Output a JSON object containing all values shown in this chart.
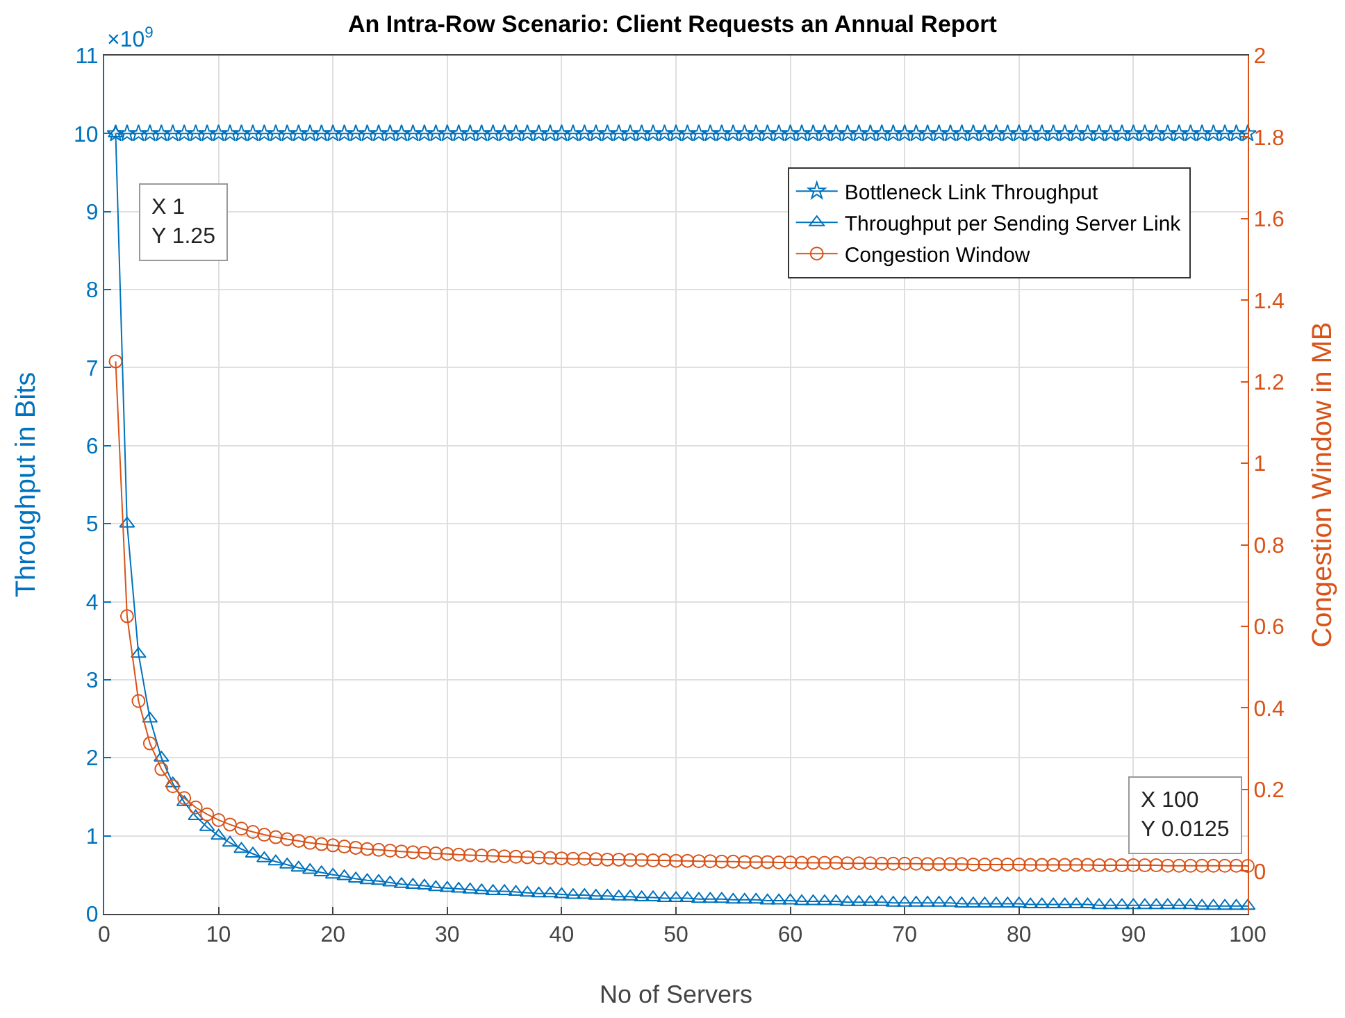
{
  "chart_data": {
    "type": "line",
    "title": "An Intra-Row Scenario: Client Requests an Annual Report",
    "xlabel": "No of Servers",
    "ylabel": "Throughput in Bits",
    "y2label": "Congestion Window in MB",
    "x": [
      1,
      2,
      3,
      4,
      5,
      6,
      7,
      8,
      9,
      10,
      11,
      12,
      13,
      14,
      15,
      16,
      17,
      18,
      19,
      20,
      21,
      22,
      23,
      24,
      25,
      26,
      27,
      28,
      29,
      30,
      31,
      32,
      33,
      34,
      35,
      36,
      37,
      38,
      39,
      40,
      41,
      42,
      43,
      44,
      45,
      46,
      47,
      48,
      49,
      50,
      51,
      52,
      53,
      54,
      55,
      56,
      57,
      58,
      59,
      60,
      61,
      62,
      63,
      64,
      65,
      66,
      67,
      68,
      69,
      70,
      71,
      72,
      73,
      74,
      75,
      76,
      77,
      78,
      79,
      80,
      81,
      82,
      83,
      84,
      85,
      86,
      87,
      88,
      89,
      90,
      91,
      92,
      93,
      94,
      95,
      96,
      97,
      98,
      99,
      100
    ],
    "series": [
      {
        "name": "Bottleneck Link Throughput",
        "color": "#0072bd",
        "marker": "star",
        "values": [
          10,
          10,
          10,
          10,
          10,
          10,
          10,
          10,
          10,
          10,
          10,
          10,
          10,
          10,
          10,
          10,
          10,
          10,
          10,
          10,
          10,
          10,
          10,
          10,
          10,
          10,
          10,
          10,
          10,
          10,
          10,
          10,
          10,
          10,
          10,
          10,
          10,
          10,
          10,
          10,
          10,
          10,
          10,
          10,
          10,
          10,
          10,
          10,
          10,
          10,
          10,
          10,
          10,
          10,
          10,
          10,
          10,
          10,
          10,
          10,
          10,
          10,
          10,
          10,
          10,
          10,
          10,
          10,
          10,
          10,
          10,
          10,
          10,
          10,
          10,
          10,
          10,
          10,
          10,
          10,
          10,
          10,
          10,
          10,
          10,
          10,
          10,
          10,
          10,
          10,
          10,
          10,
          10,
          10,
          10,
          10,
          10,
          10,
          10,
          10
        ]
      },
      {
        "name": "Throughput per Sending Server Link",
        "color": "#0072bd",
        "marker": "triangle",
        "values": [
          10,
          5,
          3.33,
          2.5,
          2,
          1.67,
          1.43,
          1.25,
          1.11,
          1,
          0.91,
          0.83,
          0.77,
          0.71,
          0.67,
          0.63,
          0.59,
          0.56,
          0.53,
          0.5,
          0.48,
          0.45,
          0.43,
          0.42,
          0.4,
          0.38,
          0.37,
          0.36,
          0.34,
          0.33,
          0.32,
          0.31,
          0.3,
          0.29,
          0.29,
          0.28,
          0.27,
          0.26,
          0.26,
          0.25,
          0.24,
          0.24,
          0.23,
          0.23,
          0.22,
          0.22,
          0.21,
          0.21,
          0.2,
          0.2,
          0.2,
          0.19,
          0.19,
          0.19,
          0.18,
          0.18,
          0.18,
          0.17,
          0.17,
          0.17,
          0.16,
          0.16,
          0.16,
          0.16,
          0.15,
          0.15,
          0.15,
          0.15,
          0.14,
          0.14,
          0.14,
          0.14,
          0.14,
          0.14,
          0.13,
          0.13,
          0.13,
          0.13,
          0.13,
          0.13,
          0.12,
          0.12,
          0.12,
          0.12,
          0.12,
          0.12,
          0.11,
          0.11,
          0.11,
          0.11,
          0.11,
          0.11,
          0.11,
          0.11,
          0.11,
          0.1,
          0.1,
          0.1,
          0.1,
          0.1
        ]
      },
      {
        "name": "Congestion Window",
        "color": "#d95319",
        "marker": "circle",
        "axis": "y2",
        "values": [
          1.25,
          0.625,
          0.417,
          0.313,
          0.25,
          0.208,
          0.179,
          0.156,
          0.139,
          0.125,
          0.114,
          0.104,
          0.096,
          0.089,
          0.083,
          0.078,
          0.074,
          0.069,
          0.066,
          0.063,
          0.06,
          0.057,
          0.054,
          0.052,
          0.05,
          0.048,
          0.046,
          0.045,
          0.043,
          0.042,
          0.04,
          0.039,
          0.038,
          0.037,
          0.036,
          0.035,
          0.034,
          0.033,
          0.032,
          0.031,
          0.03,
          0.03,
          0.029,
          0.028,
          0.028,
          0.027,
          0.027,
          0.026,
          0.026,
          0.025,
          0.025,
          0.024,
          0.024,
          0.023,
          0.023,
          0.022,
          0.022,
          0.022,
          0.021,
          0.021,
          0.02,
          0.02,
          0.02,
          0.02,
          0.019,
          0.019,
          0.019,
          0.018,
          0.018,
          0.018,
          0.018,
          0.017,
          0.017,
          0.017,
          0.017,
          0.016,
          0.016,
          0.016,
          0.016,
          0.016,
          0.015,
          0.015,
          0.015,
          0.015,
          0.015,
          0.015,
          0.014,
          0.014,
          0.014,
          0.014,
          0.014,
          0.014,
          0.013,
          0.013,
          0.013,
          0.013,
          0.013,
          0.013,
          0.013,
          0.0125
        ]
      }
    ],
    "xlim": [
      0,
      100
    ],
    "xticks": [
      0,
      10,
      20,
      30,
      40,
      50,
      60,
      70,
      80,
      90,
      100
    ],
    "ylim": [
      0,
      11
    ],
    "yticks": [
      0,
      1,
      2,
      3,
      4,
      5,
      6,
      7,
      8,
      9,
      10,
      11
    ],
    "y2lim": [
      -0.105,
      2
    ],
    "y2ticks": [
      0,
      0.2,
      0.4,
      0.6,
      0.8,
      1,
      1.2,
      1.4,
      1.6,
      1.8,
      2
    ],
    "annotations": [
      "×10$^{9}$",
      "X 1\nY 1.25",
      "X 100\nY 0.0125"
    ],
    "grid": true,
    "legend": "top right",
    "line_style": "solid"
  }
}
